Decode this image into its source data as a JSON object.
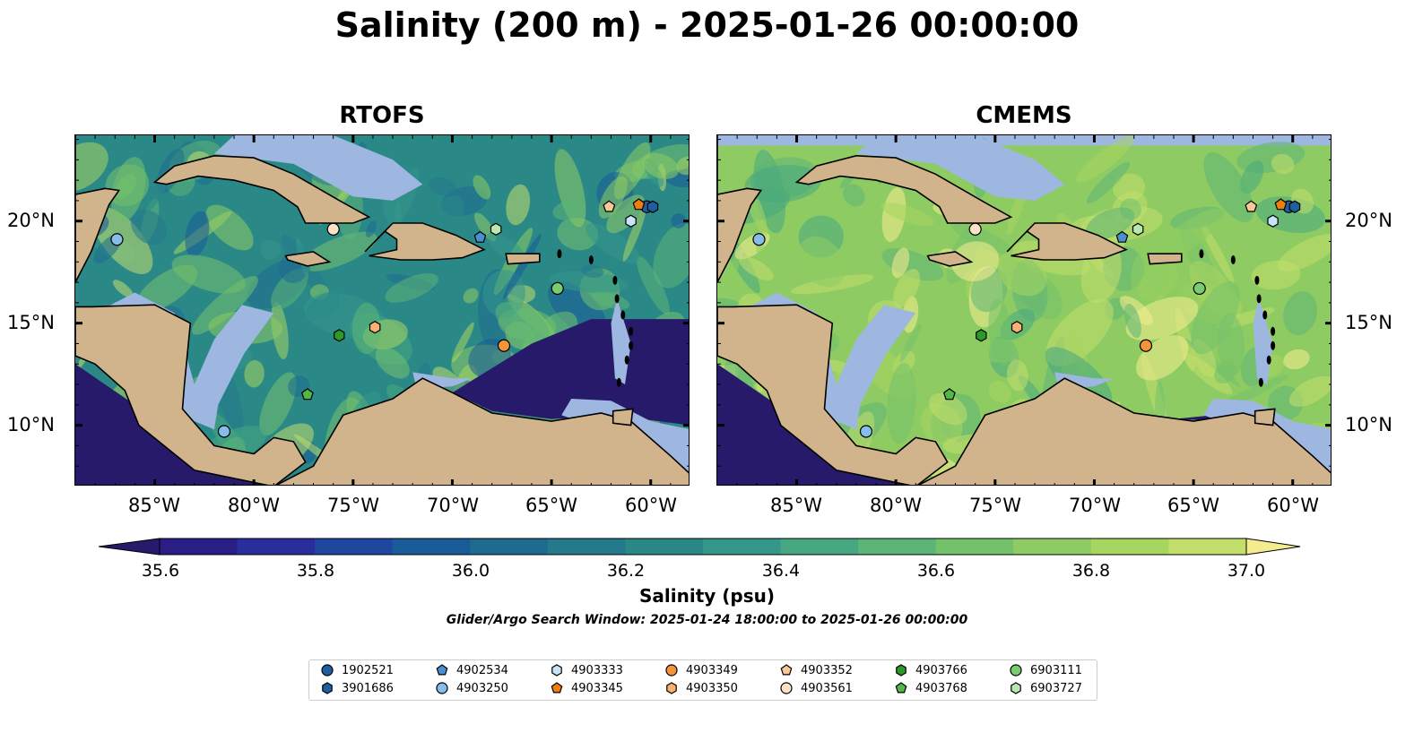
{
  "title": "Salinity (200 m) - 2025-01-26 00:00:00",
  "colors": {
    "land": "#d2b48c",
    "shallow": "#9db7e0",
    "low": "#281a6b",
    "scale": [
      "#2b1d86",
      "#2a2e9c",
      "#1f47a0",
      "#195b98",
      "#1d6c90",
      "#247a8b",
      "#2a8887",
      "#34978a",
      "#46a780",
      "#5cb576",
      "#74c16b",
      "#8ecc63",
      "#a7d660",
      "#c3df6b",
      "#f5ec8f"
    ]
  },
  "panels": [
    {
      "name": "RTOFS"
    },
    {
      "name": "CMEMS"
    }
  ],
  "x_ticks": [
    "85°W",
    "80°W",
    "75°W",
    "70°W",
    "65°W",
    "60°W"
  ],
  "y_ticks": [
    "20°N",
    "15°N",
    "10°N"
  ],
  "colorbar": {
    "label": "Salinity (psu)",
    "ticks": [
      "35.6",
      "35.8",
      "36.0",
      "36.2",
      "36.4",
      "36.6",
      "36.8",
      "37.0"
    ]
  },
  "search_window": "Glider/Argo Search Window: 2025-01-24 18:00:00 to 2025-01-26 00:00:00",
  "legend": [
    {
      "id": "1902521",
      "marker": "circle",
      "color": "#1f5fa0"
    },
    {
      "id": "3901686",
      "marker": "hexagon",
      "color": "#1f5fa0"
    },
    {
      "id": "4902534",
      "marker": "pentagon",
      "color": "#4a90d0"
    },
    {
      "id": "4903250",
      "marker": "circle",
      "color": "#86bdea"
    },
    {
      "id": "4903333",
      "marker": "hexagon",
      "color": "#c8e4f8"
    },
    {
      "id": "4903345",
      "marker": "pentagon",
      "color": "#f07d0e"
    },
    {
      "id": "4903349",
      "marker": "circle",
      "color": "#f4953a"
    },
    {
      "id": "4903350",
      "marker": "hexagon",
      "color": "#f9b070"
    },
    {
      "id": "4903352",
      "marker": "pentagon",
      "color": "#f9c89a"
    },
    {
      "id": "4903561",
      "marker": "circle",
      "color": "#fde2c8"
    },
    {
      "id": "4903766",
      "marker": "hexagon",
      "color": "#2a9a2a"
    },
    {
      "id": "4903768",
      "marker": "pentagon",
      "color": "#52b845"
    },
    {
      "id": "6903111",
      "marker": "circle",
      "color": "#79cc70"
    },
    {
      "id": "6903727",
      "marker": "hexagon",
      "color": "#b8e8b0"
    }
  ],
  "chart_data": {
    "type": "heatmap",
    "variable": "Salinity (psu)",
    "depth": "200 m",
    "time": "2025-01-26 00:00:00",
    "x_range_lon": [
      -89,
      -58
    ],
    "y_range_lat": [
      7,
      24.2
    ],
    "colorbar_range": [
      35.6,
      37.0
    ],
    "colorbar_step": 0.1,
    "observations": [
      {
        "id": "1902521",
        "lon": -60.2,
        "lat": 20.7
      },
      {
        "id": "3901686",
        "lon": -59.9,
        "lat": 20.7
      },
      {
        "id": "4902534",
        "lon": -68.6,
        "lat": 19.2
      },
      {
        "id": "4903250",
        "lon": -81.5,
        "lat": 9.7
      },
      {
        "id": "4903250",
        "lon": -86.9,
        "lat": 19.1
      },
      {
        "id": "4903333",
        "lon": -61.0,
        "lat": 20.0
      },
      {
        "id": "4903345",
        "lon": -60.6,
        "lat": 20.8
      },
      {
        "id": "4903349",
        "lon": -67.4,
        "lat": 13.9
      },
      {
        "id": "4903350",
        "lon": -73.9,
        "lat": 14.8
      },
      {
        "id": "4903352",
        "lon": -62.1,
        "lat": 20.7
      },
      {
        "id": "4903561",
        "lon": -76.0,
        "lat": 19.6
      },
      {
        "id": "4903766",
        "lon": -75.7,
        "lat": 14.4
      },
      {
        "id": "4903768",
        "lon": -77.3,
        "lat": 11.5
      },
      {
        "id": "6903111",
        "lon": -64.7,
        "lat": 16.7
      },
      {
        "id": "6903727",
        "lon": -67.8,
        "lat": 19.6
      }
    ]
  }
}
